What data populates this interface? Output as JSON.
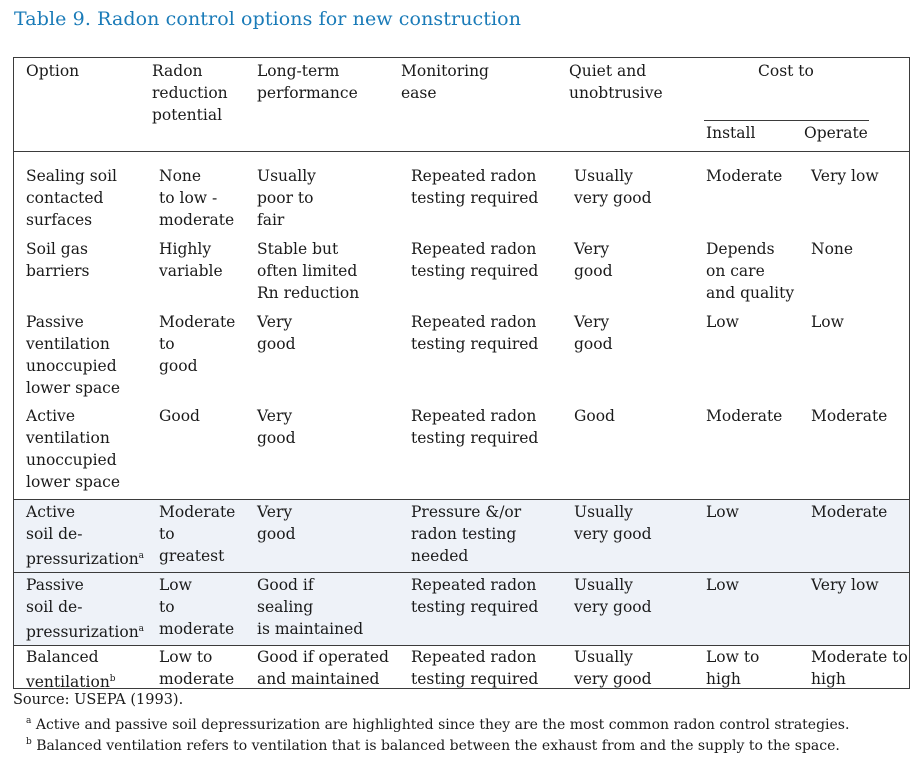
{
  "title": "Table 9. Radon control options for new construction",
  "headers": {
    "option": "Option",
    "radon": [
      "Radon",
      "reduction",
      "potential"
    ],
    "longterm": [
      "Long-term",
      "performance"
    ],
    "monitoring": [
      "Monitoring",
      "ease"
    ],
    "quiet": [
      "Quiet and",
      "unobtrusive"
    ],
    "cost": "Cost to",
    "install": "Install",
    "operate": "Operate"
  },
  "rows": [
    {
      "option": [
        "Sealing soil",
        "contacted",
        "surfaces"
      ],
      "radon": [
        "None",
        "to low -",
        "moderate"
      ],
      "longterm": [
        "Usually",
        "poor  to",
        "fair"
      ],
      "monitoring": [
        "Repeated radon",
        "testing required"
      ],
      "quiet": [
        "Usually",
        "very good"
      ],
      "install": [
        "Moderate"
      ],
      "operate": [
        "Very low"
      ]
    },
    {
      "option": [
        "Soil gas",
        "barriers"
      ],
      "radon": [
        "Highly",
        "variable"
      ],
      "longterm": [
        "Stable but",
        "often limited",
        "Rn reduction"
      ],
      "monitoring": [
        "Repeated radon",
        "testing required"
      ],
      "quiet": [
        "Very",
        "good"
      ],
      "install": [
        "Depends",
        "on care",
        "and quality"
      ],
      "operate": [
        "None"
      ]
    },
    {
      "option": [
        "Passive",
        "ventilation",
        "unoccupied",
        "lower space"
      ],
      "radon": [
        "Moderate",
        "to",
        "good"
      ],
      "longterm": [
        "Very",
        "good"
      ],
      "monitoring": [
        "Repeated radon",
        "testing required"
      ],
      "quiet": [
        "Very",
        "good"
      ],
      "install": [
        "Low"
      ],
      "operate": [
        "Low"
      ]
    },
    {
      "option": [
        "Active",
        "ventilation",
        "unoccupied",
        "lower space"
      ],
      "radon": [
        "Good"
      ],
      "longterm": [
        "Very",
        "good"
      ],
      "monitoring": [
        "Repeated radon",
        "testing required"
      ],
      "quiet": [
        "Good"
      ],
      "install": [
        "Moderate"
      ],
      "operate": [
        "Moderate"
      ]
    },
    {
      "option": [
        "Active",
        "soil de-",
        "pressurization"
      ],
      "option_sup": "a",
      "radon": [
        "Moderate",
        "to",
        "greatest"
      ],
      "longterm": [
        "Very",
        "good"
      ],
      "monitoring": [
        "Pressure &/or",
        "radon testing",
        "needed"
      ],
      "quiet": [
        "Usually",
        "very good"
      ],
      "install": [
        "Low"
      ],
      "operate": [
        "Moderate"
      ]
    },
    {
      "option": [
        "Passive",
        "soil de-",
        "pressurization"
      ],
      "option_sup": "a",
      "radon": [
        "Low",
        "to",
        "moderate"
      ],
      "longterm": [
        "Good if",
        "sealing",
        "is maintained"
      ],
      "monitoring": [
        "Repeated radon",
        "testing required"
      ],
      "quiet": [
        "Usually",
        "very good"
      ],
      "install": [
        "Low"
      ],
      "operate": [
        "Very low"
      ]
    },
    {
      "option": [
        "Balanced",
        "ventilation"
      ],
      "option_sup": "b",
      "radon": [
        "Low to",
        "moderate"
      ],
      "longterm": [
        "Good if operated",
        "and maintained"
      ],
      "monitoring": [
        "Repeated radon",
        "testing required"
      ],
      "quiet": [
        "Usually",
        "very good"
      ],
      "install": [
        "Low to",
        "high"
      ],
      "operate": [
        "Moderate to",
        "high"
      ]
    }
  ],
  "source": "Source: USEPA (1993).",
  "notes": [
    {
      "mark": "a",
      "text": "Active and passive soil depressurization are highlighted since they are the most common radon control strategies."
    },
    {
      "mark": "b",
      "text": "Balanced ventilation refers to ventilation that is balanced between the exhaust from and the supply to the space."
    }
  ]
}
